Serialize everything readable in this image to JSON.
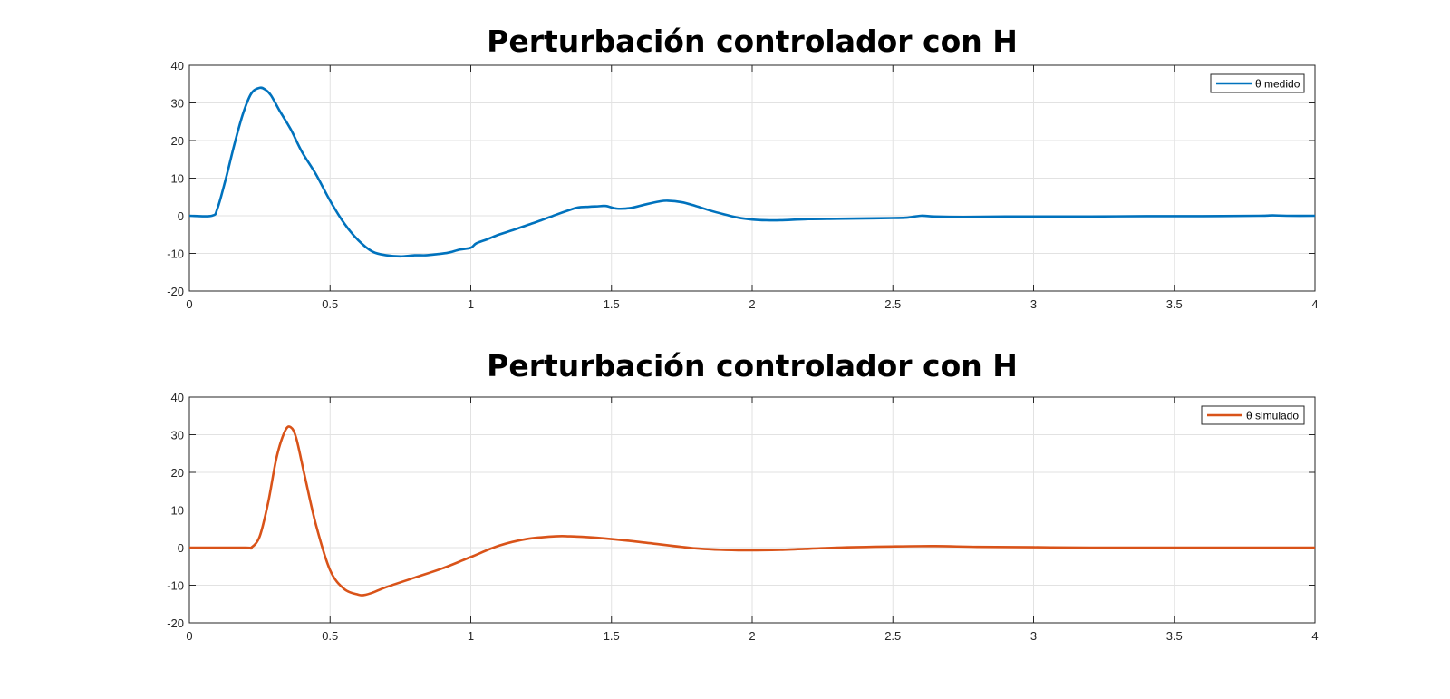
{
  "colors": {
    "series1": "#0072BD",
    "series2": "#D95319",
    "grid": "#e2e2e2",
    "axis": "#262626"
  },
  "chart_data": [
    {
      "type": "line",
      "title": "Perturbación controlador con H",
      "xlim": [
        0,
        4
      ],
      "ylim": [
        -20,
        40
      ],
      "xticks": [
        0,
        0.5,
        1,
        1.5,
        2,
        2.5,
        3,
        3.5,
        4
      ],
      "xtick_labels": [
        "0",
        "0.5",
        "1",
        "1.5",
        "2",
        "2.5",
        "3",
        "3.5",
        "4"
      ],
      "yticks": [
        -20,
        -10,
        0,
        10,
        20,
        30,
        40
      ],
      "ytick_labels": [
        "-20",
        "-10",
        "0",
        "10",
        "20",
        "30",
        "40"
      ],
      "grid": true,
      "legend_position": "top-right",
      "series": [
        {
          "name": "θ medido",
          "color": "#0072BD",
          "x": [
            0,
            0.08,
            0.1,
            0.13,
            0.16,
            0.19,
            0.22,
            0.25,
            0.27,
            0.29,
            0.32,
            0.36,
            0.4,
            0.45,
            0.5,
            0.55,
            0.6,
            0.65,
            0.7,
            0.75,
            0.8,
            0.84,
            0.88,
            0.92,
            0.96,
            1.0,
            1.02,
            1.06,
            1.1,
            1.15,
            1.2,
            1.25,
            1.3,
            1.35,
            1.38,
            1.42,
            1.45,
            1.48,
            1.52,
            1.57,
            1.62,
            1.67,
            1.7,
            1.75,
            1.8,
            1.85,
            1.9,
            1.95,
            2.0,
            2.05,
            2.1,
            2.2,
            2.3,
            2.4,
            2.5,
            2.55,
            2.6,
            2.65,
            2.75,
            2.9,
            3.0,
            3.2,
            3.4,
            3.6,
            3.8,
            3.85,
            3.9,
            4.0
          ],
          "y": [
            0,
            0,
            2,
            10,
            19,
            27,
            32.5,
            34,
            33.5,
            32,
            28,
            23,
            17,
            11,
            4,
            -2,
            -6.5,
            -9.5,
            -10.5,
            -10.8,
            -10.5,
            -10.5,
            -10.2,
            -9.8,
            -9,
            -8.5,
            -7.3,
            -6.2,
            -5,
            -3.8,
            -2.5,
            -1.2,
            0.2,
            1.5,
            2.2,
            2.4,
            2.5,
            2.6,
            1.9,
            2.1,
            3,
            3.8,
            4,
            3.6,
            2.6,
            1.4,
            0.4,
            -0.5,
            -1,
            -1.2,
            -1.2,
            -0.9,
            -0.8,
            -0.7,
            -0.6,
            -0.5,
            0,
            -0.2,
            -0.3,
            -0.2,
            -0.2,
            -0.2,
            -0.1,
            -0.1,
            0,
            0.1,
            0,
            0
          ]
        }
      ]
    },
    {
      "type": "line",
      "title": "Perturbación controlador con H",
      "xlim": [
        0,
        4
      ],
      "ylim": [
        -20,
        40
      ],
      "xticks": [
        0,
        0.5,
        1,
        1.5,
        2,
        2.5,
        3,
        3.5,
        4
      ],
      "xtick_labels": [
        "0",
        "0.5",
        "1",
        "1.5",
        "2",
        "2.5",
        "3",
        "3.5",
        "4"
      ],
      "yticks": [
        -20,
        -10,
        0,
        10,
        20,
        30,
        40
      ],
      "ytick_labels": [
        "-20",
        "-10",
        "0",
        "10",
        "20",
        "30",
        "40"
      ],
      "grid": true,
      "legend_position": "top-right",
      "series": [
        {
          "name": "θ simulado",
          "color": "#D95319",
          "x": [
            0,
            0.2,
            0.22,
            0.25,
            0.28,
            0.31,
            0.34,
            0.36,
            0.38,
            0.41,
            0.45,
            0.5,
            0.55,
            0.6,
            0.62,
            0.65,
            0.7,
            0.8,
            0.9,
            1.0,
            1.1,
            1.2,
            1.3,
            1.35,
            1.45,
            1.6,
            1.8,
            1.95,
            2.1,
            2.3,
            2.5,
            2.65,
            2.8,
            3.0,
            3.2,
            3.5,
            3.8,
            4.0
          ],
          "y": [
            0,
            0,
            0,
            3,
            12,
            24,
            31,
            32,
            29,
            19,
            6,
            -6,
            -11,
            -12.5,
            -12.6,
            -12,
            -10.5,
            -8,
            -5.5,
            -2.5,
            0.5,
            2.3,
            3,
            3,
            2.6,
            1.5,
            -0.2,
            -0.7,
            -0.6,
            0,
            0.3,
            0.4,
            0.2,
            0.1,
            0,
            0,
            0,
            0
          ]
        }
      ]
    }
  ]
}
